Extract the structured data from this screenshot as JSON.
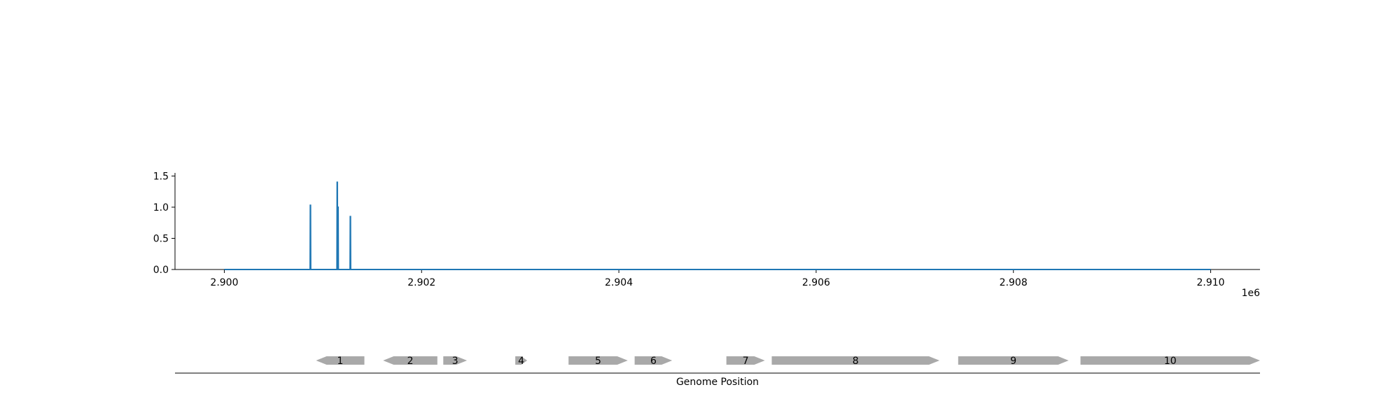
{
  "chart_data": {
    "type": "line",
    "title": "",
    "xlabel": "Genome Position",
    "ylabel": "",
    "x_offset_label": "1e6",
    "xlim": [
      2899500,
      2910500
    ],
    "ylim": [
      0,
      1.55
    ],
    "x_ticks": [
      2900000,
      2902000,
      2904000,
      2906000,
      2908000,
      2910000
    ],
    "x_tick_labels": [
      "2.900",
      "2.902",
      "2.904",
      "2.906",
      "2.908",
      "2.910"
    ],
    "y_ticks": [
      0,
      0.5,
      1.0,
      1.5
    ],
    "y_tick_labels": [
      "0.0",
      "0.5",
      "1.0",
      "1.5"
    ],
    "grid": false,
    "line_color": "#1f77b4",
    "series": [
      {
        "x": [
          2900000,
          2900870,
          2900872,
          2900874,
          2900876,
          2901142,
          2901144,
          2901146,
          2901148,
          2901150,
          2901152,
          2901154,
          2901156,
          2901275,
          2901277,
          2901279,
          2901281,
          2910000
        ],
        "values": [
          0,
          0,
          1.03,
          1.03,
          0,
          0,
          1.4,
          1.4,
          0,
          0,
          1.0,
          1.0,
          0,
          0,
          0.85,
          0.85,
          0,
          0
        ]
      }
    ],
    "genes": {
      "color": "#a9a9a9",
      "label_color": "#000000",
      "items": [
        {
          "label": "1",
          "start": 2900930,
          "end": 2901420,
          "strand": "-"
        },
        {
          "label": "2",
          "start": 2901610,
          "end": 2902160,
          "strand": "-"
        },
        {
          "label": "3",
          "start": 2902220,
          "end": 2902460,
          "strand": "+"
        },
        {
          "label": "4",
          "start": 2902950,
          "end": 2903070,
          "strand": "+"
        },
        {
          "label": "5",
          "start": 2903490,
          "end": 2904090,
          "strand": "+"
        },
        {
          "label": "6",
          "start": 2904160,
          "end": 2904540,
          "strand": "+"
        },
        {
          "label": "7",
          "start": 2905090,
          "end": 2905480,
          "strand": "+"
        },
        {
          "label": "8",
          "start": 2905550,
          "end": 2907250,
          "strand": "+"
        },
        {
          "label": "9",
          "start": 2907440,
          "end": 2908560,
          "strand": "+"
        },
        {
          "label": "10",
          "start": 2908680,
          "end": 2910500,
          "strand": "+"
        }
      ]
    }
  }
}
